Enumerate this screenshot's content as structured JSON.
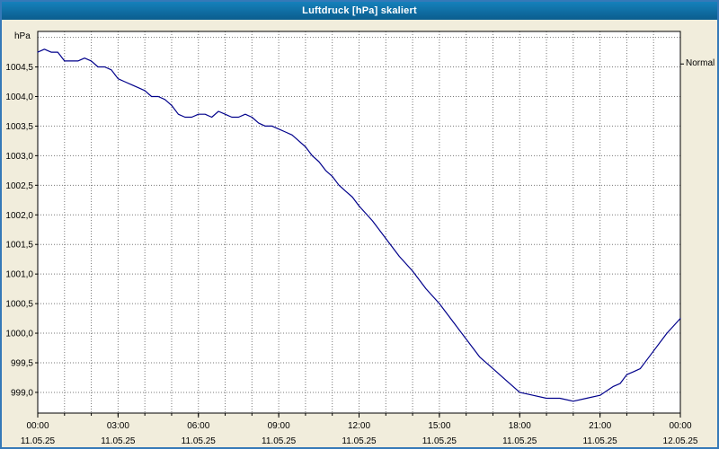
{
  "window": {
    "title": "Luftdruck [hPa] skaliert"
  },
  "chart_data": {
    "type": "line",
    "title": "Luftdruck [hPa] skaliert",
    "xlabel": "",
    "ylabel": "hPa",
    "legend": "none",
    "grid": "dotted",
    "xlim": [
      0,
      24
    ],
    "ylim": [
      998.65,
      1005.1
    ],
    "ytick_step": 0.5,
    "yticks": [
      999.0,
      999.5,
      1000.0,
      1000.5,
      1001.0,
      1001.5,
      1002.0,
      1002.5,
      1003.0,
      1003.5,
      1004.0,
      1004.5
    ],
    "ytick_labels": [
      "999,0",
      "999,5",
      "1000,0",
      "1000,5",
      "1001,0",
      "1001,5",
      "1002,0",
      "1002,5",
      "1003,0",
      "1003,5",
      "1004,0",
      "1004,5"
    ],
    "grid_y": [
      999.0,
      999.5,
      1000.0,
      1000.5,
      1001.0,
      1001.5,
      1002.0,
      1002.5,
      1003.0,
      1003.5,
      1004.0,
      1004.5,
      1005.0
    ],
    "xticks": [
      0,
      3,
      6,
      9,
      12,
      15,
      18,
      21,
      24
    ],
    "xtick_times": [
      "00:00",
      "03:00",
      "06:00",
      "09:00",
      "12:00",
      "15:00",
      "18:00",
      "21:00",
      "00:00"
    ],
    "xtick_dates": [
      "11.05.25",
      "11.05.25",
      "11.05.25",
      "11.05.25",
      "11.05.25",
      "11.05.25",
      "11.05.25",
      "11.05.25",
      "12.05.25"
    ],
    "normal_label": {
      "text": "Normal",
      "value": 1004.55
    },
    "colors": {
      "line": "#00008b",
      "titlebar": "#0d6d9c",
      "background": "#f1eddc",
      "grid": "#787878"
    },
    "series": [
      {
        "name": "Luftdruck",
        "unit": "hPa",
        "color": "#00008b",
        "x": [
          0,
          0.25,
          0.5,
          0.75,
          1,
          1.25,
          1.5,
          1.75,
          2,
          2.25,
          2.5,
          2.75,
          3,
          3.25,
          3.5,
          3.75,
          4,
          4.25,
          4.5,
          4.75,
          5,
          5.25,
          5.5,
          5.75,
          6,
          6.25,
          6.5,
          6.75,
          7,
          7.25,
          7.5,
          7.75,
          8,
          8.25,
          8.5,
          8.75,
          9,
          9.25,
          9.5,
          9.75,
          10,
          10.25,
          10.5,
          10.75,
          11,
          11.25,
          11.5,
          11.75,
          12,
          12.5,
          13,
          13.5,
          14,
          14.5,
          15,
          15.5,
          16,
          16.5,
          17,
          17.5,
          18,
          18.5,
          19,
          19.5,
          20,
          20.5,
          21,
          21.5,
          21.75,
          22,
          22.25,
          22.5,
          22.75,
          23,
          23.5,
          24
        ],
        "y": [
          1004.75,
          1004.8,
          1004.75,
          1004.75,
          1004.6,
          1004.6,
          1004.6,
          1004.65,
          1004.6,
          1004.5,
          1004.5,
          1004.45,
          1004.3,
          1004.25,
          1004.2,
          1004.15,
          1004.1,
          1004.0,
          1004.0,
          1003.95,
          1003.85,
          1003.7,
          1003.65,
          1003.65,
          1003.7,
          1003.7,
          1003.65,
          1003.75,
          1003.7,
          1003.65,
          1003.65,
          1003.7,
          1003.65,
          1003.55,
          1003.5,
          1003.5,
          1003.45,
          1003.4,
          1003.35,
          1003.25,
          1003.15,
          1003.0,
          1002.9,
          1002.75,
          1002.65,
          1002.5,
          1002.4,
          1002.3,
          1002.15,
          1001.9,
          1001.6,
          1001.3,
          1001.05,
          1000.75,
          1000.5,
          1000.2,
          999.9,
          999.6,
          999.4,
          999.2,
          999.0,
          998.95,
          998.9,
          998.9,
          998.85,
          998.9,
          998.95,
          999.1,
          999.15,
          999.3,
          999.35,
          999.4,
          999.55,
          999.7,
          1000.0,
          1000.25
        ]
      }
    ]
  }
}
